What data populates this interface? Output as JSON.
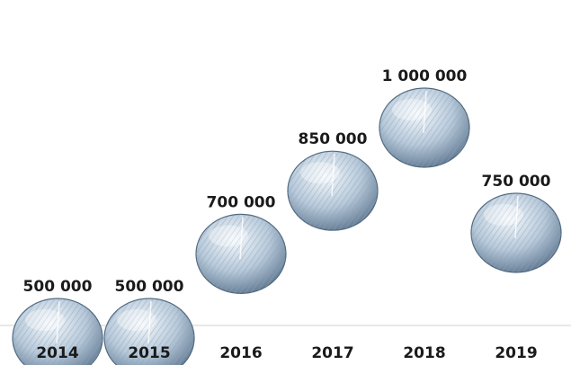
{
  "chart_data": {
    "type": "scatter",
    "categories": [
      "2014",
      "2015",
      "2016",
      "2017",
      "2018",
      "2019"
    ],
    "values": [
      500000,
      500000,
      700000,
      850000,
      1000000,
      750000
    ],
    "value_labels": [
      "500 000",
      "500 000",
      "700 000",
      "850 000",
      "1 000 000",
      "750 000"
    ],
    "title": "",
    "xlabel": "",
    "ylabel": "",
    "ylim": [
      0,
      1000000
    ],
    "grid": false,
    "legend": "none",
    "marker": "bubble",
    "colors": {
      "bubble_light": "#f4f8fc",
      "bubble_mid": "#b7c9da",
      "bubble_dark": "#5f7790",
      "bubble_edge": "#51697f",
      "hatch": "#8ea3b8",
      "axis": "#d0d0d0",
      "text": "#1a1a1a"
    }
  }
}
